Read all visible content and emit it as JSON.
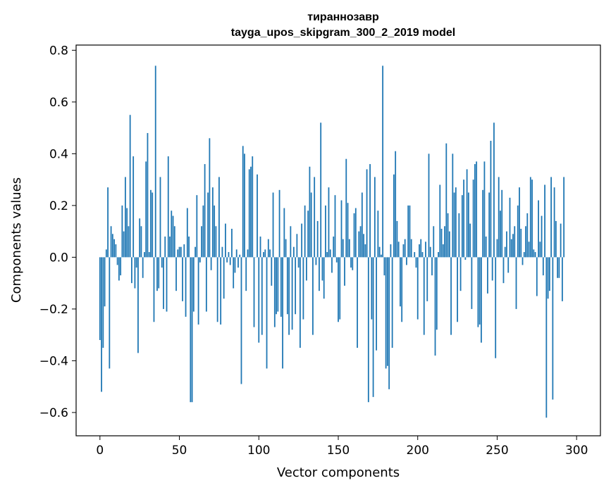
{
  "chart_data": {
    "type": "bar",
    "title_line1": "тираннозавр",
    "title_line2": "tayga_upos_skipgram_300_2_2019 model",
    "xlabel": "Vector components",
    "ylabel": "Components values",
    "xlim": [
      -15,
      315
    ],
    "ylim": [
      -0.69,
      0.82
    ],
    "xticks": [
      0,
      50,
      100,
      150,
      200,
      250,
      300
    ],
    "xtick_labels": [
      "0",
      "50",
      "100",
      "150",
      "200",
      "250",
      "300"
    ],
    "yticks": [
      -0.6,
      -0.4,
      -0.2,
      0.0,
      0.2,
      0.4,
      0.6,
      0.8
    ],
    "ytick_labels": [
      "−0.6",
      "−0.4",
      "−0.2",
      "0.0",
      "0.2",
      "0.4",
      "0.6",
      "0.8"
    ],
    "bar_color": "#1f77b4",
    "values": [
      -0.32,
      -0.52,
      -0.35,
      -0.19,
      0.03,
      0.27,
      -0.43,
      0.12,
      0.09,
      0.07,
      0.05,
      -0.03,
      -0.09,
      -0.07,
      0.2,
      0.1,
      0.31,
      0.19,
      0.12,
      0.55,
      -0.1,
      0.39,
      -0.12,
      -0.04,
      -0.37,
      0.15,
      0.12,
      -0.08,
      0.02,
      0.37,
      0.48,
      0.02,
      0.26,
      0.25,
      -0.25,
      0.74,
      -0.13,
      -0.12,
      0.31,
      -0.04,
      -0.2,
      0.08,
      -0.21,
      0.39,
      0.08,
      0.18,
      0.16,
      0.12,
      -0.13,
      0.03,
      0.04,
      0.04,
      -0.17,
      0.05,
      -0.23,
      0.19,
      0.08,
      -0.56,
      -0.56,
      -0.21,
      0.04,
      0.24,
      -0.26,
      -0.02,
      0.12,
      0.2,
      0.36,
      -0.21,
      0.25,
      0.46,
      -0.05,
      0.27,
      0.2,
      0.12,
      -0.25,
      0.31,
      -0.26,
      0.04,
      -0.16,
      0.13,
      -0.02,
      0.02,
      -0.03,
      0.11,
      -0.12,
      -0.06,
      0.03,
      -0.04,
      0.01,
      -0.49,
      0.43,
      0.4,
      -0.13,
      0.03,
      0.34,
      0.35,
      0.39,
      -0.27,
      0.0,
      0.32,
      -0.33,
      0.08,
      -0.3,
      0.02,
      0.03,
      -0.43,
      0.07,
      0.03,
      -0.11,
      0.25,
      -0.27,
      -0.22,
      -0.21,
      0.26,
      -0.23,
      -0.43,
      0.19,
      0.07,
      -0.22,
      -0.3,
      0.12,
      -0.28,
      0.04,
      -0.22,
      0.09,
      -0.04,
      -0.35,
      0.13,
      -0.24,
      0.2,
      -0.09,
      0.18,
      0.35,
      0.25,
      -0.3,
      0.31,
      -0.03,
      0.14,
      -0.13,
      0.52,
      -0.09,
      -0.16,
      0.2,
      0.02,
      0.27,
      0.03,
      -0.06,
      0.08,
      0.24,
      -0.02,
      -0.25,
      -0.24,
      0.22,
      0.07,
      -0.11,
      0.38,
      0.21,
      0.07,
      -0.04,
      -0.05,
      0.17,
      0.19,
      -0.35,
      0.1,
      0.12,
      0.25,
      0.09,
      0.05,
      0.34,
      -0.56,
      0.36,
      -0.24,
      -0.54,
      0.31,
      -0.36,
      0.18,
      0.04,
      0.01,
      0.74,
      -0.07,
      -0.43,
      -0.42,
      -0.51,
      0.05,
      -0.35,
      0.32,
      0.41,
      0.14,
      0.06,
      -0.19,
      -0.25,
      0.05,
      0.07,
      -0.03,
      0.2,
      0.2,
      0.07,
      0.0,
      0.02,
      -0.04,
      -0.24,
      0.05,
      0.07,
      0.02,
      -0.3,
      0.06,
      -0.17,
      0.4,
      0.04,
      -0.07,
      0.12,
      -0.38,
      -0.28,
      0.02,
      0.28,
      0.11,
      0.05,
      0.12,
      0.44,
      0.17,
      0.1,
      -0.3,
      0.4,
      0.25,
      0.27,
      -0.25,
      0.17,
      -0.13,
      0.24,
      0.3,
      -0.01,
      0.34,
      0.25,
      0.13,
      -0.2,
      0.3,
      0.36,
      0.37,
      -0.27,
      -0.26,
      -0.33,
      0.26,
      0.37,
      0.08,
      -0.14,
      0.25,
      0.45,
      -0.09,
      0.52,
      -0.39,
      0.07,
      0.31,
      0.18,
      0.26,
      -0.1,
      0.04,
      0.1,
      -0.06,
      0.23,
      0.07,
      0.09,
      0.12,
      -0.2,
      0.2,
      0.27,
      0.11,
      -0.03,
      0.02,
      0.12,
      0.17,
      0.06,
      0.31,
      0.3,
      0.03,
      0.02,
      -0.15,
      0.22,
      0.06,
      0.16,
      -0.07,
      0.28,
      -0.62,
      -0.16,
      -0.13,
      0.31,
      -0.55,
      0.27,
      0.14,
      -0.08,
      -0.08,
      0.13,
      -0.17,
      0.31
    ]
  }
}
